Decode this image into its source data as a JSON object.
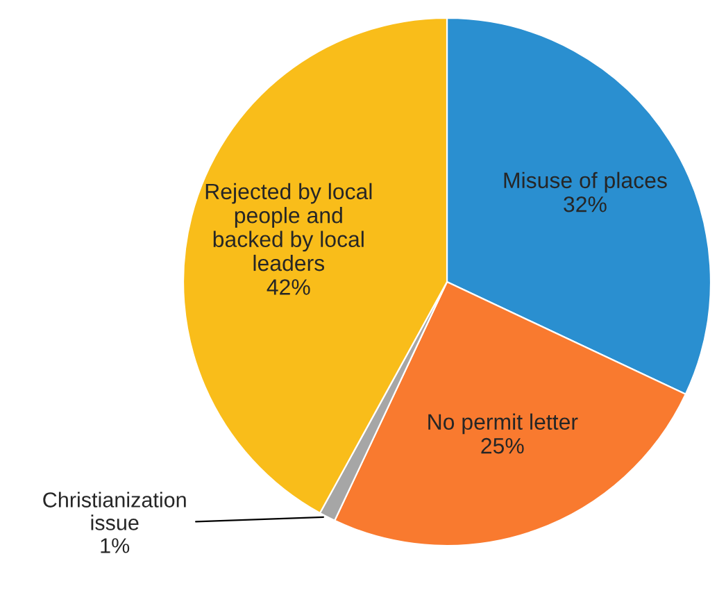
{
  "chart_data": {
    "type": "pie",
    "categories": [
      "Misuse of places",
      "No permit letter",
      "Christianization\nissue",
      "Rejected by local\npeople and\nbacked by local\nleaders"
    ],
    "values": [
      32,
      25,
      1,
      42
    ],
    "value_labels": [
      "32%",
      "25%",
      "1%",
      "42%"
    ],
    "colors": [
      "#2a8fd0",
      "#f97a2f",
      "#a6a6a6",
      "#f9bd1a"
    ],
    "legend": false
  }
}
